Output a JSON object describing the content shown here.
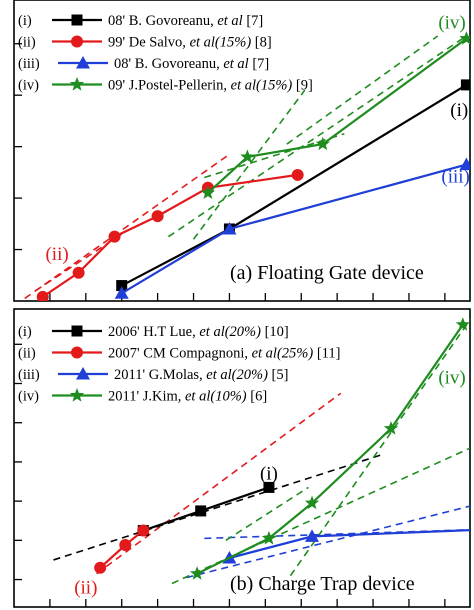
{
  "chart_data": [
    {
      "type": "line",
      "title": "(a) Floating Gate device",
      "x_unit": "tick",
      "xlim": [
        0,
        12.7
      ],
      "ylim": [
        0,
        5.85
      ],
      "grid": false,
      "legend_position": "top-left",
      "x_ticks": [
        1,
        2,
        3,
        4,
        5,
        6,
        7,
        8,
        9,
        10,
        11,
        12
      ],
      "y_ticks": [
        1,
        2,
        3,
        4,
        5
      ],
      "series": [
        {
          "id": "i",
          "roman": "(i)",
          "legend": {
            "prefix": "(i)",
            "text": "08' B. Govoreanu,",
            "italic": "et al",
            "suffix": "[7]"
          },
          "color": "#000000",
          "marker": "square",
          "x": [
            3,
            6,
            12.6
          ],
          "y": [
            0.3,
            1.4,
            4.2
          ],
          "label_xy": [
            12.4,
            3.6
          ]
        },
        {
          "id": "ii",
          "roman": "(ii)",
          "legend": {
            "prefix": "(ii)",
            "text": "99' De Salvo,",
            "italic": "et al(15%)",
            "suffix": "[8]"
          },
          "color": "#e31a1c",
          "marker": "circle",
          "x": [
            0.8,
            1.8,
            2.8,
            4,
            5.4,
            7.9
          ],
          "y": [
            0.08,
            0.55,
            1.25,
            1.65,
            2.2,
            2.45
          ],
          "label_xy": [
            1.2,
            0.8
          ]
        },
        {
          "id": "iii",
          "roman": "(iii)",
          "legend": {
            "prefix": "(iii)",
            "text": "08' B. Govoreanu,",
            "italic": "et al",
            "suffix": "[7]"
          },
          "color": "#1f3fd6",
          "marker": "triangle",
          "x": [
            3,
            6,
            12.6
          ],
          "y": [
            0.15,
            1.4,
            2.65
          ],
          "label_xy": [
            12.3,
            2.3
          ]
        },
        {
          "id": "iv",
          "roman": "(iv)",
          "legend": {
            "prefix": "(iv)",
            "text": "09' J.Postel-Pellerin,",
            "italic": "et al(15%)",
            "suffix": "[9]"
          },
          "color": "#1e8c1e",
          "marker": "star",
          "x": [
            5.4,
            6.5,
            8.6,
            12.6
          ],
          "y": [
            2.1,
            2.8,
            3.05,
            5.1
          ],
          "label_xy": [
            12.2,
            5.3
          ]
        }
      ],
      "fit_lines": [
        {
          "color": "#e31a1c",
          "x": [
            0.3,
            6
          ],
          "y": [
            0.05,
            2.85
          ]
        },
        {
          "color": "#e31a1c",
          "x": [
            0.6,
            3
          ],
          "y": [
            0.2,
            1.3
          ]
        },
        {
          "color": "#1e8c1e",
          "x": [
            4.3,
            12.6
          ],
          "y": [
            1.25,
            5.15
          ]
        },
        {
          "color": "#1e8c1e",
          "x": [
            5.3,
            9.2
          ],
          "y": [
            2.4,
            3.25
          ]
        },
        {
          "color": "#1e8c1e",
          "x": [
            5,
            8.1
          ],
          "y": [
            1.2,
            4.1
          ]
        },
        {
          "color": "#1e8c1e",
          "x": [
            7.6,
            11.8
          ],
          "y": [
            3.05,
            5.15
          ]
        }
      ]
    },
    {
      "type": "line",
      "title": "(b) Charge Trap device",
      "x_unit": "tick",
      "xlim": [
        0,
        12.7
      ],
      "ylim": [
        -0.7,
        6.9
      ],
      "grid": false,
      "legend_position": "top-left",
      "x_ticks": [
        1,
        2,
        3,
        4,
        5,
        6,
        7,
        8,
        9,
        10,
        11,
        12
      ],
      "y_ticks": [
        0,
        1,
        2,
        3,
        4,
        5,
        6
      ],
      "series": [
        {
          "id": "i",
          "roman": "(i)",
          "legend": {
            "prefix": "(i)",
            "text": "2006' H.T Lue,",
            "italic": "et al(20%)",
            "suffix": "[10]"
          },
          "color": "#000000",
          "marker": "square",
          "x": [
            3.6,
            5.2,
            7.1
          ],
          "y": [
            1.25,
            1.75,
            2.35
          ],
          "label_xy": [
            7.1,
            2.55
          ]
        },
        {
          "id": "ii",
          "roman": "(ii)",
          "legend": {
            "prefix": "(ii)",
            "text": "2007' CM Compagnoni,",
            "italic": "et al(25%)",
            "suffix": "[11]"
          },
          "color": "#e31a1c",
          "marker": "circle",
          "x": [
            2.4,
            3.1,
            3.6
          ],
          "y": [
            0.3,
            0.88,
            1.25
          ],
          "label_xy": [
            2.0,
            -0.35
          ]
        },
        {
          "id": "iii",
          "roman": "(iii)",
          "legend": {
            "prefix": "(iii)",
            "text": "2011' G.Molas,",
            "italic": "et al(20%)",
            "suffix": "[5]"
          },
          "color": "#1f3fd6",
          "marker": "triangle",
          "x": [
            6,
            8.3,
            15.2
          ],
          "y": [
            0.55,
            1.1,
            1.35
          ],
          "label_xy": [
            14.8,
            1.7
          ]
        },
        {
          "id": "iv",
          "roman": "(iv)",
          "legend": {
            "prefix": "(iv)",
            "text": "2011' J.Kim,",
            "italic": "et al(10%)",
            "suffix": "[6]"
          },
          "color": "#1e8c1e",
          "marker": "star",
          "x": [
            5.1,
            7.1,
            8.3,
            10.5,
            12.5
          ],
          "y": [
            0.15,
            1.05,
            1.95,
            3.85,
            6.5
          ],
          "label_xy": [
            12.2,
            5.0
          ]
        }
      ],
      "fit_lines": [
        {
          "color": "#e31a1c",
          "x": [
            2.3,
            9.1
          ],
          "y": [
            0.15,
            4.75
          ]
        },
        {
          "color": "#000000",
          "x": [
            1.1,
            10.3
          ],
          "y": [
            0.5,
            3.2
          ]
        },
        {
          "color": "#1f3fd6",
          "x": [
            5.3,
            15.4
          ],
          "y": [
            1.05,
            1.35
          ]
        },
        {
          "color": "#1f3fd6",
          "x": [
            4.8,
            15.2
          ],
          "y": [
            0.05,
            2.45
          ]
        },
        {
          "color": "#1e8c1e",
          "x": [
            4.4,
            13.3
          ],
          "y": [
            -0.1,
            3.6
          ]
        },
        {
          "color": "#1e8c1e",
          "x": [
            7.7,
            12.8
          ],
          "y": [
            0.1,
            6.75
          ]
        },
        {
          "color": "#1e8c1e",
          "x": [
            5.9,
            8.2
          ],
          "y": [
            1.0,
            2.35
          ]
        }
      ]
    }
  ]
}
